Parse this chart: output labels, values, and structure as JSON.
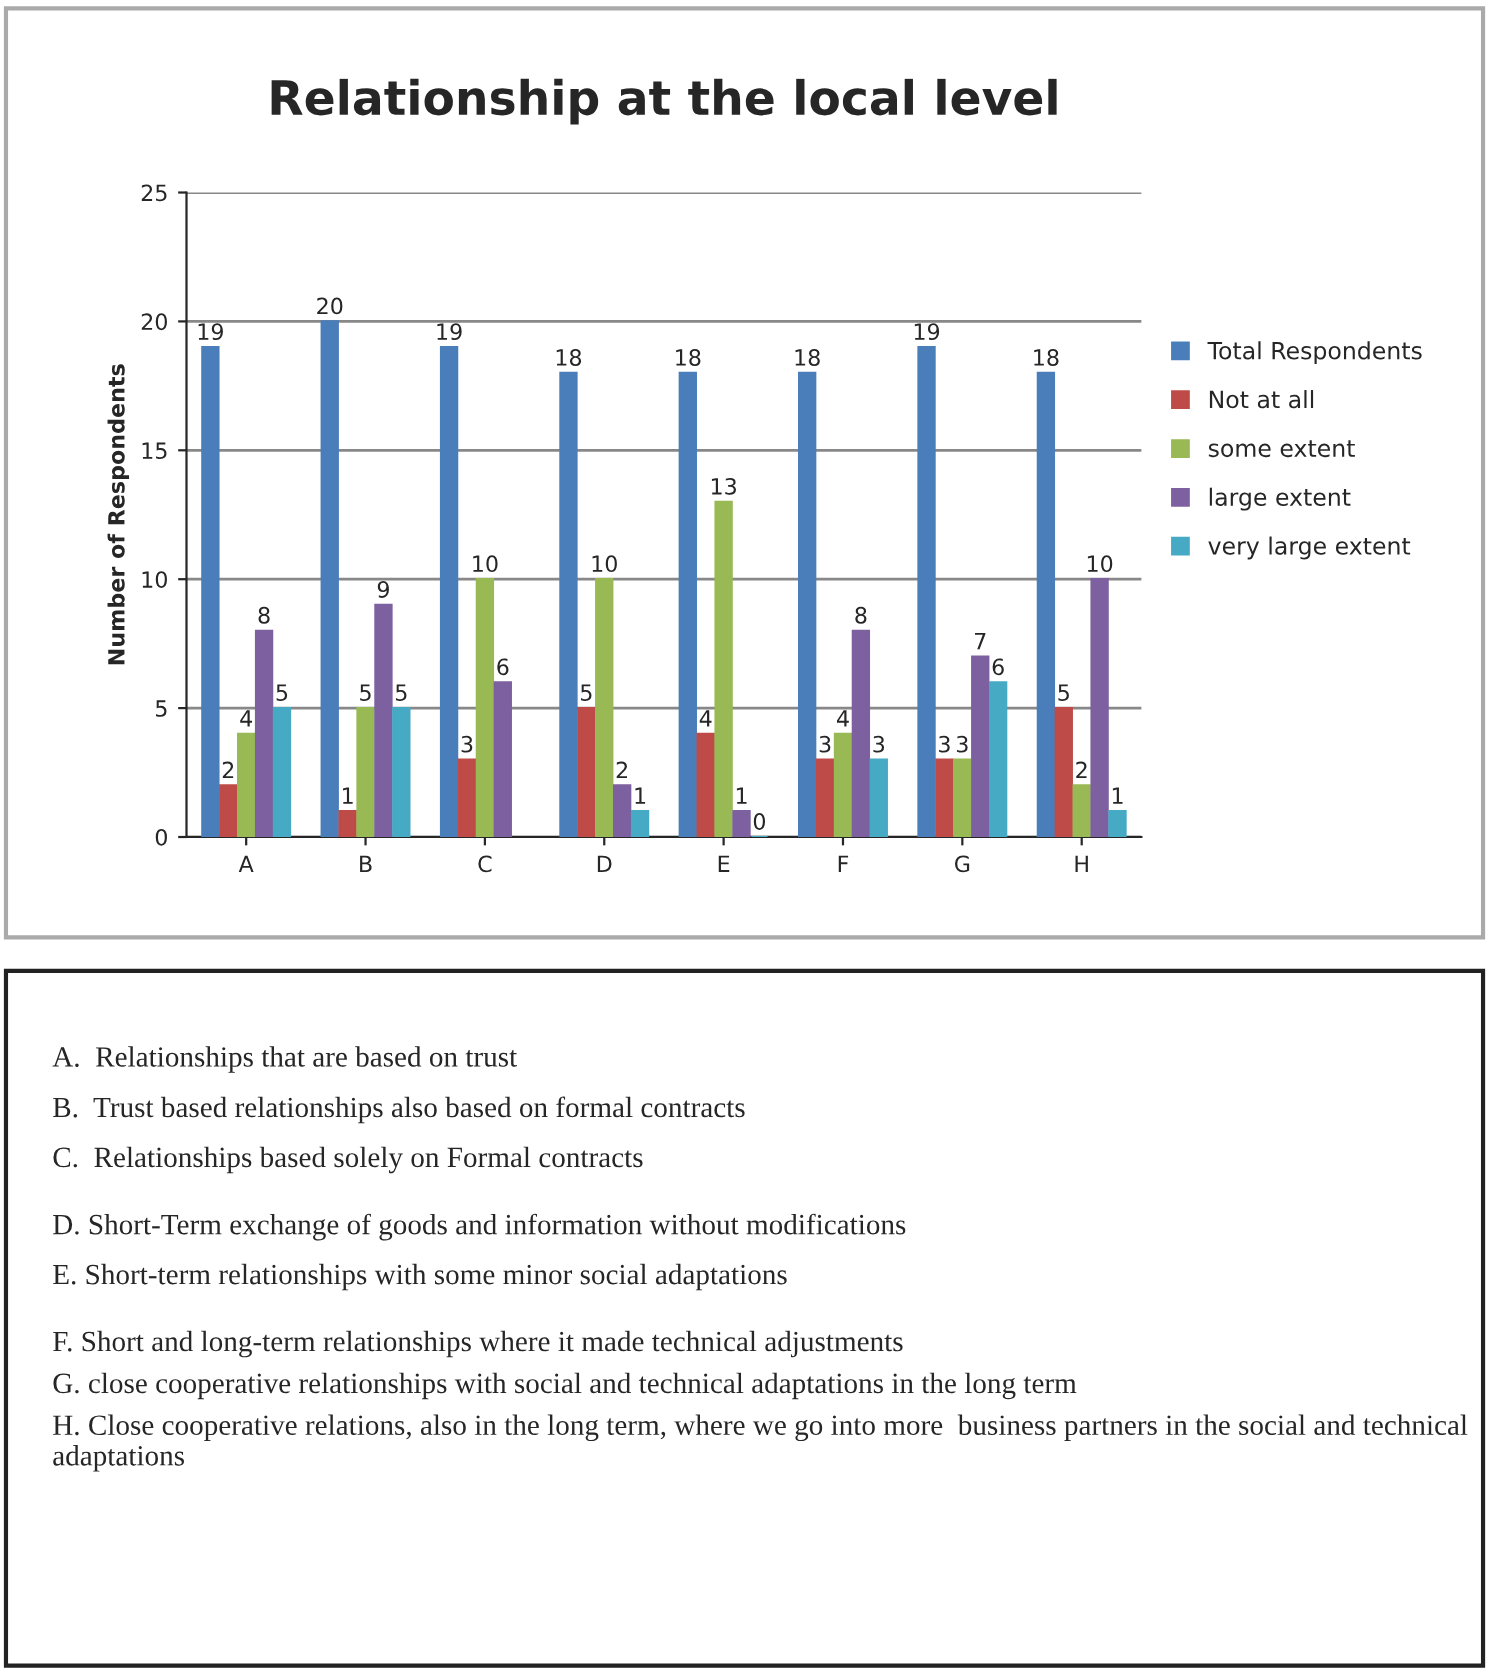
{
  "chart_data": {
    "type": "bar",
    "title": "Relationship at the local level",
    "ylabel": "Number of Respondents",
    "categories": [
      "A",
      "B",
      "C",
      "D",
      "E",
      "F",
      "G",
      "H"
    ],
    "series": [
      {
        "name": "Total Respondents",
        "color": "#4a7ebb",
        "values": [
          19,
          20,
          19,
          18,
          18,
          18,
          19,
          18
        ]
      },
      {
        "name": "Not at all",
        "color": "#be4b48",
        "values": [
          2,
          1,
          3,
          5,
          4,
          3,
          3,
          5
        ]
      },
      {
        "name": "some extent",
        "color": "#98b954",
        "values": [
          4,
          5,
          10,
          10,
          13,
          4,
          3,
          2
        ]
      },
      {
        "name": "large extent",
        "color": "#7d60a0",
        "values": [
          8,
          9,
          6,
          2,
          1,
          8,
          7,
          10
        ]
      },
      {
        "name": "very large extent",
        "color": "#46aac5",
        "values": [
          5,
          5,
          null,
          1,
          0,
          3,
          6,
          1
        ]
      }
    ],
    "ylim": [
      0,
      25
    ],
    "yticks": [
      0,
      5,
      10,
      15,
      20,
      25
    ],
    "grid": "y",
    "legend": "right",
    "data_labels": true,
    "annotations": [
      "A.  Relationships that are based on trust",
      "B.  Trust based relationships also based on formal contracts",
      "C.  Relationships based solely on Formal contracts",
      "D. Short-Term exchange of goods and information without modifications",
      "E. Short-term relationships with some minor social adaptations",
      "F. Short and long-term relationships where it made technical adjustments",
      "G. close cooperative relationships with social and technical adaptations in the long term",
      "H. Close cooperative relations, also in the long term, where we go into more  business partners in the social and technical adaptations"
    ]
  }
}
